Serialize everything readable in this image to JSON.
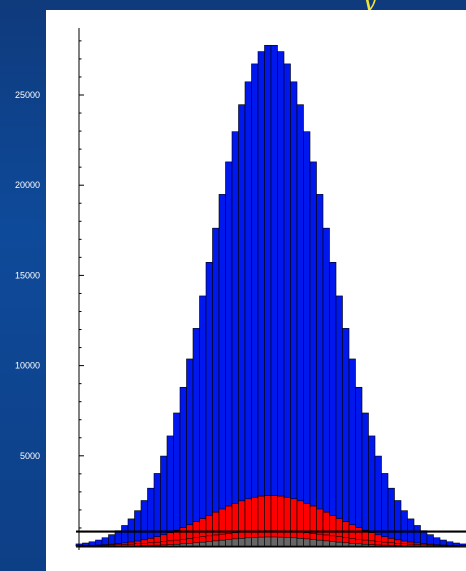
{
  "chart_data": {
    "type": "bar",
    "stacked": false,
    "title": "",
    "xlabel": "",
    "ylabel": "",
    "ylim": [
      0,
      28000
    ],
    "yticks": [
      5000,
      10000,
      15000,
      20000,
      25000
    ],
    "grid": false,
    "bin_count": 60,
    "reference_line": {
      "y": 800,
      "color": "#000000"
    },
    "series": [
      {
        "color": "#0018ee",
        "peak": 27800,
        "center_bin": 29.5,
        "sigma_bins": 8.9
      },
      {
        "color": "#ff0000",
        "peak": 2800,
        "center_bin": 29.5,
        "sigma_bins": 9.5
      },
      {
        "color": "#ff0000",
        "peak": 850,
        "center_bin": 29.5,
        "sigma_bins": 10.5
      },
      {
        "color": "#666666",
        "peak": 500,
        "center_bin": 29.5,
        "sigma_bins": 8.0
      }
    ]
  }
}
